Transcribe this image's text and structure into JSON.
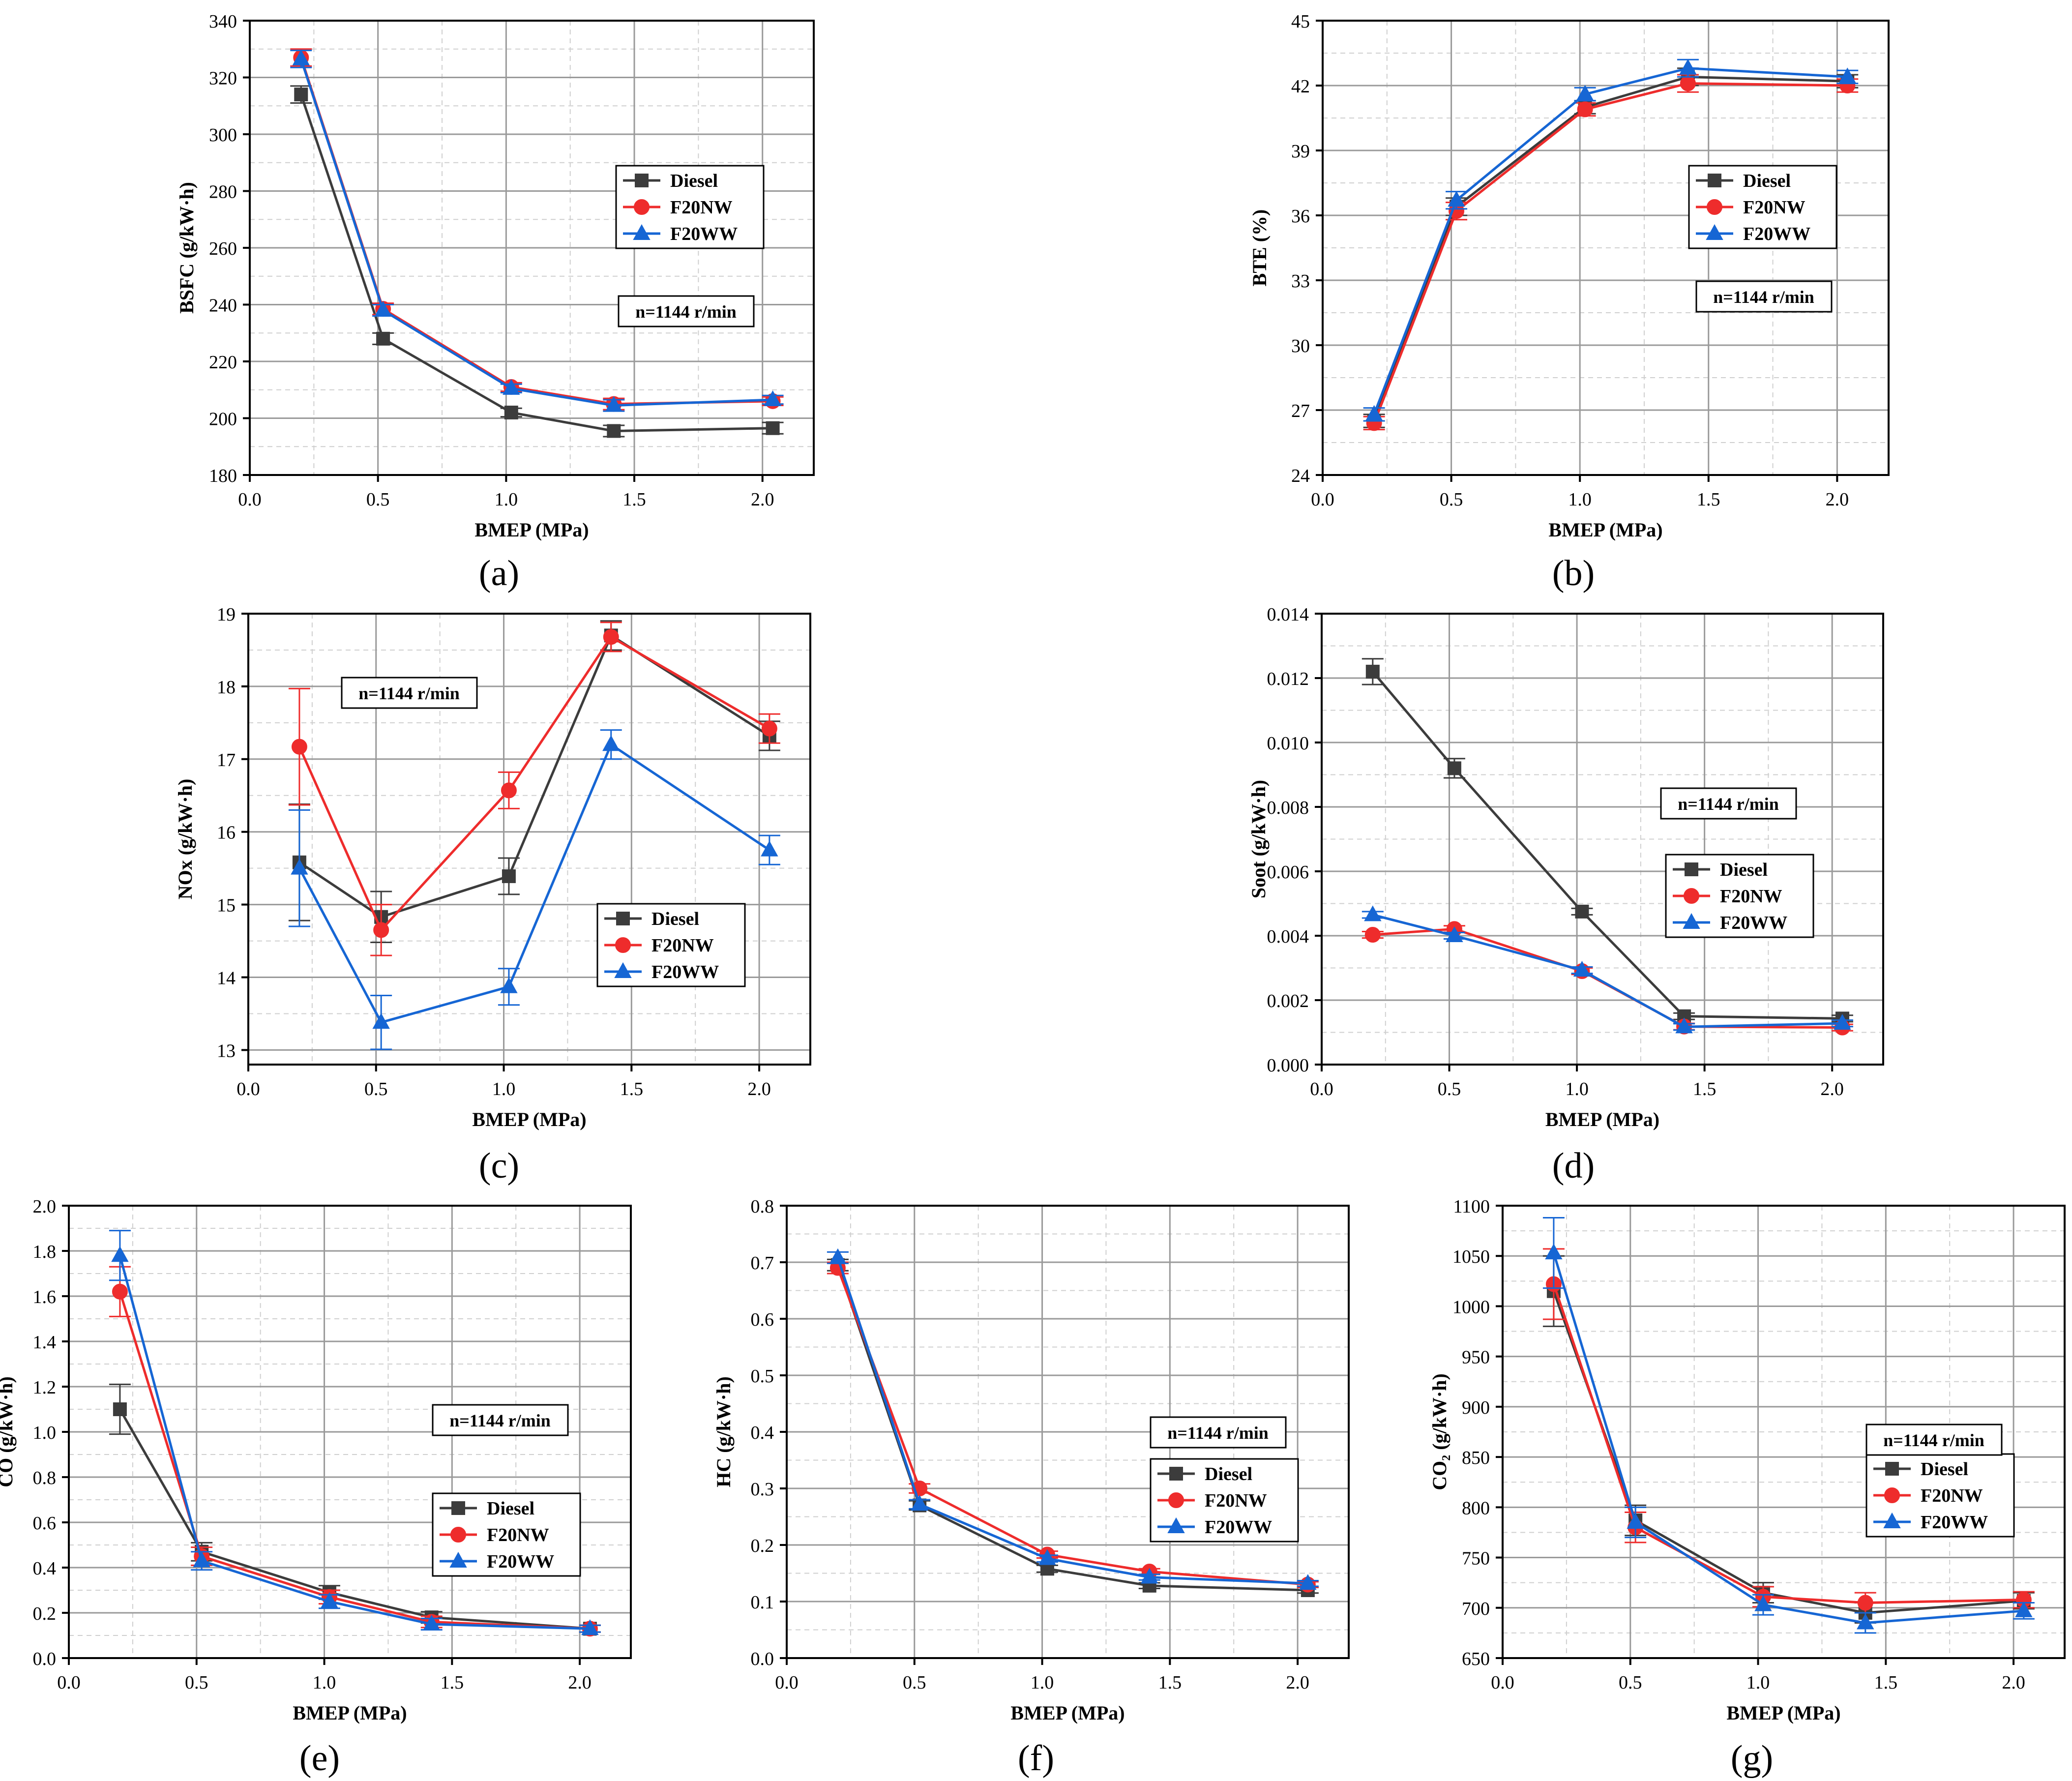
{
  "figure": {
    "series_names": [
      "Diesel",
      "F20NW",
      "F20WW"
    ],
    "colors": {
      "Diesel": "#3c3c3c",
      "F20NW": "#ee2c2c",
      "F20WW": "#1666d4"
    },
    "speed_label": "n=1144 r/min"
  },
  "chart_data": [
    {
      "id": "a",
      "caption": "(a)",
      "type": "line",
      "xlabel": "BMEP (MPa)",
      "ylabel": "BSFC (g/kW·h)",
      "xlim": [
        0,
        2.2
      ],
      "xticks": [
        0.0,
        0.5,
        1.0,
        1.5,
        2.0
      ],
      "xtick_labels": [
        "0.0",
        "0.5",
        "1.0",
        "1.5",
        "2.0"
      ],
      "ylim": [
        180,
        340
      ],
      "yticks": [
        180,
        200,
        220,
        240,
        260,
        280,
        300,
        320,
        340
      ],
      "ytick_labels": [
        "180",
        "200",
        "220",
        "240",
        "260",
        "280",
        "300",
        "320",
        "340"
      ],
      "legend_pos": "upper-right",
      "legend_labels": [
        "Diesel",
        "F20NW",
        "F20WW"
      ],
      "annotation": "n=1144 r/min",
      "series": [
        {
          "name": "Diesel",
          "marker": "square",
          "x": [
            0.2,
            0.52,
            1.02,
            1.42,
            2.04
          ],
          "y": [
            314,
            228,
            202,
            195.5,
            196.5
          ],
          "err": [
            3,
            2,
            1.5,
            2,
            2
          ]
        },
        {
          "name": "F20NW",
          "marker": "circle",
          "x": [
            0.2,
            0.52,
            1.02,
            1.42,
            2.04
          ],
          "y": [
            327,
            238.5,
            211,
            205,
            206
          ],
          "err": [
            3,
            2,
            1.5,
            2,
            1.5
          ]
        },
        {
          "name": "F20WW",
          "marker": "triangle",
          "x": [
            0.2,
            0.52,
            1.02,
            1.42,
            2.04
          ],
          "y": [
            326.5,
            238,
            210.5,
            204.5,
            206.5
          ],
          "err": [
            3,
            2,
            1.5,
            2,
            1.5
          ]
        }
      ]
    },
    {
      "id": "b",
      "caption": "(b)",
      "type": "line",
      "xlabel": "BMEP (MPa)",
      "ylabel": "BTE (%)",
      "xlim": [
        0,
        2.2
      ],
      "xticks": [
        0.0,
        0.5,
        1.0,
        1.5,
        2.0
      ],
      "xtick_labels": [
        "0.0",
        "0.5",
        "1.0",
        "1.5",
        "2.0"
      ],
      "ylim": [
        24,
        45
      ],
      "yticks": [
        24,
        27,
        30,
        33,
        36,
        39,
        42,
        45
      ],
      "ytick_labels": [
        "24",
        "27",
        "30",
        "33",
        "36",
        "39",
        "42",
        "45"
      ],
      "legend_pos": "upper-right",
      "legend_labels": [
        "Diesel",
        "F20NW",
        "F20WW"
      ],
      "annotation": "n=1144 r/min",
      "series": [
        {
          "name": "Diesel",
          "marker": "square",
          "x": [
            0.2,
            0.52,
            1.02,
            1.42,
            2.04
          ],
          "y": [
            26.5,
            36.4,
            41.0,
            42.4,
            42.2
          ],
          "err": [
            0.3,
            0.4,
            0.3,
            0.4,
            0.3
          ]
        },
        {
          "name": "F20NW",
          "marker": "circle",
          "x": [
            0.2,
            0.52,
            1.02,
            1.42,
            2.04
          ],
          "y": [
            26.4,
            36.2,
            40.9,
            42.1,
            42.0
          ],
          "err": [
            0.3,
            0.4,
            0.3,
            0.4,
            0.3
          ]
        },
        {
          "name": "F20WW",
          "marker": "triangle",
          "x": [
            0.2,
            0.52,
            1.02,
            1.42,
            2.04
          ],
          "y": [
            26.8,
            36.7,
            41.6,
            42.8,
            42.4
          ],
          "err": [
            0.3,
            0.4,
            0.3,
            0.4,
            0.3
          ]
        }
      ]
    },
    {
      "id": "c",
      "caption": "(c)",
      "type": "line",
      "xlabel": "BMEP (MPa)",
      "ylabel": "NOx (g/kW·h)",
      "xlim": [
        0,
        2.2
      ],
      "xticks": [
        0.0,
        0.5,
        1.0,
        1.5,
        2.0
      ],
      "xtick_labels": [
        "0.0",
        "0.5",
        "1.0",
        "1.5",
        "2.0"
      ],
      "ylim": [
        12.8,
        19
      ],
      "yticks": [
        13,
        14,
        15,
        16,
        17,
        18,
        19
      ],
      "ytick_labels": [
        "13",
        "14",
        "15",
        "16",
        "17",
        "18",
        "19"
      ],
      "legend_pos": "lower-right",
      "legend_labels": [
        "Diesel",
        "F20NW",
        "F20WW"
      ],
      "annotation": "n=1144 r/min",
      "series": [
        {
          "name": "Diesel",
          "marker": "square",
          "x": [
            0.2,
            0.52,
            1.02,
            1.42,
            2.04
          ],
          "y": [
            15.58,
            14.83,
            15.39,
            18.7,
            17.32
          ],
          "err": [
            0.8,
            0.35,
            0.25,
            0.2,
            0.2
          ]
        },
        {
          "name": "F20NW",
          "marker": "circle",
          "x": [
            0.2,
            0.52,
            1.02,
            1.42,
            2.04
          ],
          "y": [
            17.17,
            14.65,
            16.57,
            18.68,
            17.42
          ],
          "err": [
            0.8,
            0.35,
            0.25,
            0.2,
            0.2
          ]
        },
        {
          "name": "F20WW",
          "marker": "triangle",
          "x": [
            0.2,
            0.52,
            1.02,
            1.42,
            2.04
          ],
          "y": [
            15.5,
            13.38,
            13.87,
            17.2,
            15.75
          ],
          "err": [
            0.8,
            0.37,
            0.25,
            0.2,
            0.2
          ]
        }
      ]
    },
    {
      "id": "d",
      "caption": "(d)",
      "type": "line",
      "xlabel": "BMEP (MPa)",
      "ylabel": "Soot (g/kW·h)",
      "xlim": [
        0,
        2.2
      ],
      "xticks": [
        0.0,
        0.5,
        1.0,
        1.5,
        2.0
      ],
      "xtick_labels": [
        "0.0",
        "0.5",
        "1.0",
        "1.5",
        "2.0"
      ],
      "ylim": [
        0,
        0.014
      ],
      "yticks": [
        0,
        0.002,
        0.004,
        0.006,
        0.008,
        0.01,
        0.012,
        0.014
      ],
      "ytick_labels": [
        "0.000",
        "0.002",
        "0.004",
        "0.006",
        "0.008",
        "0.010",
        "0.012",
        "0.014"
      ],
      "legend_pos": "lower-right",
      "legend_labels": [
        "Diesel",
        "F20NW",
        "F20WW"
      ],
      "annotation": "n=1144 r/min",
      "series": [
        {
          "name": "Diesel",
          "marker": "square",
          "x": [
            0.2,
            0.52,
            1.02,
            1.42,
            2.04
          ],
          "y": [
            0.0122,
            0.0092,
            0.00475,
            0.0015,
            0.00143
          ],
          "err": [
            0.0004,
            0.0003,
            0.0001,
            0.0001,
            0.0001
          ]
        },
        {
          "name": "F20NW",
          "marker": "circle",
          "x": [
            0.2,
            0.52,
            1.02,
            1.42,
            2.04
          ],
          "y": [
            0.00403,
            0.00421,
            0.0029,
            0.00118,
            0.00115
          ],
          "err": [
            0.0001,
            0.0001,
            0.0001,
            0.0001,
            0.0001
          ]
        },
        {
          "name": "F20WW",
          "marker": "triangle",
          "x": [
            0.2,
            0.52,
            1.02,
            1.42,
            2.04
          ],
          "y": [
            0.00465,
            0.004,
            0.00293,
            0.00117,
            0.00128
          ],
          "err": [
            0.0001,
            0.0001,
            0.0001,
            0.0001,
            0.0001
          ]
        }
      ]
    },
    {
      "id": "e",
      "caption": "(e)",
      "type": "line",
      "xlabel": "BMEP (MPa)",
      "ylabel": "CO (g/kW·h)",
      "xlim": [
        0,
        2.2
      ],
      "xticks": [
        0.0,
        0.5,
        1.0,
        1.5,
        2.0
      ],
      "xtick_labels": [
        "0.0",
        "0.5",
        "1.0",
        "1.5",
        "2.0"
      ],
      "ylim": [
        0,
        2.0
      ],
      "yticks": [
        0,
        0.2,
        0.4,
        0.6,
        0.8,
        1.0,
        1.2,
        1.4,
        1.6,
        1.8,
        2.0
      ],
      "ytick_labels": [
        "0.0",
        "0.2",
        "0.4",
        "0.6",
        "0.8",
        "1.0",
        "1.2",
        "1.4",
        "1.6",
        "1.8",
        "2.0"
      ],
      "legend_pos": "lower-right",
      "legend_labels": [
        "Diesel",
        "F20NW",
        "F20WW"
      ],
      "annotation": "n=1144 r/min",
      "series": [
        {
          "name": "Diesel",
          "marker": "square",
          "x": [
            0.2,
            0.52,
            1.02,
            1.42,
            2.04
          ],
          "y": [
            1.1,
            0.47,
            0.29,
            0.18,
            0.13
          ],
          "err": [
            0.11,
            0.04,
            0.03,
            0.025,
            0.015
          ]
        },
        {
          "name": "F20NW",
          "marker": "circle",
          "x": [
            0.2,
            0.52,
            1.02,
            1.42,
            2.04
          ],
          "y": [
            1.62,
            0.45,
            0.27,
            0.16,
            0.13
          ],
          "err": [
            0.11,
            0.04,
            0.03,
            0.025,
            0.015
          ]
        },
        {
          "name": "F20WW",
          "marker": "triangle",
          "x": [
            0.2,
            0.52,
            1.02,
            1.42,
            2.04
          ],
          "y": [
            1.78,
            0.43,
            0.25,
            0.15,
            0.13
          ],
          "err": [
            0.11,
            0.04,
            0.03,
            0.025,
            0.015
          ]
        }
      ]
    },
    {
      "id": "f",
      "caption": "(f)",
      "type": "line",
      "xlabel": "BMEP (MPa)",
      "ylabel": "HC (g/kW·h)",
      "xlim": [
        0,
        2.2
      ],
      "xticks": [
        0.0,
        0.5,
        1.0,
        1.5,
        2.0
      ],
      "xtick_labels": [
        "0.0",
        "0.5",
        "1.0",
        "1.5",
        "2.0"
      ],
      "ylim": [
        0,
        0.8
      ],
      "yticks": [
        0,
        0.1,
        0.2,
        0.3,
        0.4,
        0.5,
        0.6,
        0.7,
        0.8
      ],
      "ytick_labels": [
        "0.0",
        "0.1",
        "0.2",
        "0.3",
        "0.4",
        "0.5",
        "0.6",
        "0.7",
        "0.8"
      ],
      "legend_pos": "lower-right",
      "legend_labels": [
        "Diesel",
        "F20NW",
        "F20WW"
      ],
      "annotation": "n=1144 r/min",
      "series": [
        {
          "name": "Diesel",
          "marker": "square",
          "x": [
            0.2,
            0.52,
            1.02,
            1.42,
            2.04
          ],
          "y": [
            0.695,
            0.27,
            0.158,
            0.128,
            0.12
          ],
          "err": [
            0.01,
            0.008,
            0.006,
            0.005,
            0.005
          ]
        },
        {
          "name": "F20NW",
          "marker": "circle",
          "x": [
            0.2,
            0.52,
            1.02,
            1.42,
            2.04
          ],
          "y": [
            0.69,
            0.3,
            0.183,
            0.153,
            0.13
          ],
          "err": [
            0.01,
            0.008,
            0.006,
            0.005,
            0.005
          ]
        },
        {
          "name": "F20WW",
          "marker": "triangle",
          "x": [
            0.2,
            0.52,
            1.02,
            1.42,
            2.04
          ],
          "y": [
            0.708,
            0.272,
            0.176,
            0.143,
            0.132
          ],
          "err": [
            0.01,
            0.008,
            0.006,
            0.005,
            0.005
          ]
        }
      ]
    },
    {
      "id": "g",
      "caption": "(g)",
      "type": "line",
      "xlabel": "BMEP (MPa)",
      "ylabel": "CO₂ (g/kW·h)",
      "xlim": [
        0,
        2.2
      ],
      "xticks": [
        0.0,
        0.5,
        1.0,
        1.5,
        2.0
      ],
      "xtick_labels": [
        "0.0",
        "0.5",
        "1.0",
        "1.5",
        "2.0"
      ],
      "ylim": [
        650,
        1100
      ],
      "yticks": [
        650,
        700,
        750,
        800,
        850,
        900,
        950,
        1000,
        1050,
        1100
      ],
      "ytick_labels": [
        "650",
        "700",
        "750",
        "800",
        "850",
        "900",
        "950",
        "1000",
        "1050",
        "1100"
      ],
      "legend_pos": "lower-right",
      "legend_labels": [
        "Diesel",
        "F20NW",
        "F20WW"
      ],
      "annotation": "n=1144 r/min",
      "series": [
        {
          "name": "Diesel",
          "marker": "square",
          "x": [
            0.2,
            0.52,
            1.02,
            1.42,
            2.04
          ],
          "y": [
            1015,
            787,
            715,
            695,
            707
          ],
          "err": [
            35,
            15,
            10,
            10,
            8
          ]
        },
        {
          "name": "F20NW",
          "marker": "circle",
          "x": [
            0.2,
            0.52,
            1.02,
            1.42,
            2.04
          ],
          "y": [
            1022,
            780,
            711,
            705,
            708
          ],
          "err": [
            35,
            15,
            10,
            10,
            8
          ]
        },
        {
          "name": "F20WW",
          "marker": "triangle",
          "x": [
            0.2,
            0.52,
            1.02,
            1.42,
            2.04
          ],
          "y": [
            1053,
            785,
            703,
            685,
            697
          ],
          "err": [
            35,
            15,
            10,
            10,
            8
          ]
        }
      ]
    }
  ]
}
